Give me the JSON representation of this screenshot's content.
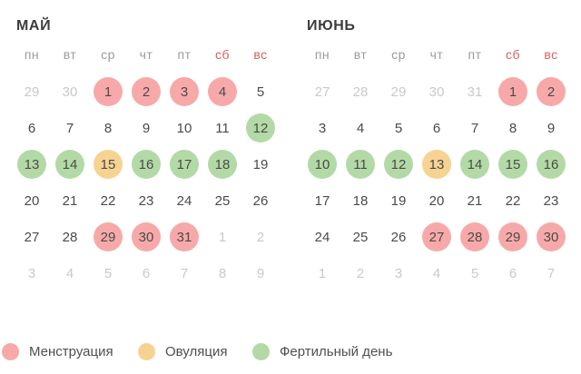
{
  "colors": {
    "menstruation": "#f7a9a9",
    "ovulation": "#f6d392",
    "fertile": "#b3daa6",
    "weekend_header": "#d95f5f",
    "weekday_header": "#9b9b9b",
    "day_text": "#4a4a4a",
    "muted_day": "#c9c9c9",
    "title": "#3c3c3c",
    "legend_text": "#4f4f4f"
  },
  "months": [
    {
      "title": "МАЙ",
      "weekdays": [
        {
          "label": "пн",
          "weekend": false
        },
        {
          "label": "вт",
          "weekend": false
        },
        {
          "label": "ср",
          "weekend": false
        },
        {
          "label": "чт",
          "weekend": false
        },
        {
          "label": "пт",
          "weekend": false
        },
        {
          "label": "сб",
          "weekend": true
        },
        {
          "label": "вс",
          "weekend": true
        }
      ],
      "weeks": [
        [
          {
            "d": "29",
            "t": "muted"
          },
          {
            "d": "30",
            "t": "muted"
          },
          {
            "d": "1",
            "t": "mens"
          },
          {
            "d": "2",
            "t": "mens"
          },
          {
            "d": "3",
            "t": "mens"
          },
          {
            "d": "4",
            "t": "mens"
          },
          {
            "d": "5",
            "t": "none"
          }
        ],
        [
          {
            "d": "6",
            "t": "none"
          },
          {
            "d": "7",
            "t": "none"
          },
          {
            "d": "8",
            "t": "none"
          },
          {
            "d": "9",
            "t": "none"
          },
          {
            "d": "10",
            "t": "none"
          },
          {
            "d": "11",
            "t": "none"
          },
          {
            "d": "12",
            "t": "fert"
          }
        ],
        [
          {
            "d": "13",
            "t": "fert"
          },
          {
            "d": "14",
            "t": "fert"
          },
          {
            "d": "15",
            "t": "ovul"
          },
          {
            "d": "16",
            "t": "fert"
          },
          {
            "d": "17",
            "t": "fert"
          },
          {
            "d": "18",
            "t": "fert"
          },
          {
            "d": "19",
            "t": "none"
          }
        ],
        [
          {
            "d": "20",
            "t": "none"
          },
          {
            "d": "21",
            "t": "none"
          },
          {
            "d": "22",
            "t": "none"
          },
          {
            "d": "23",
            "t": "none"
          },
          {
            "d": "24",
            "t": "none"
          },
          {
            "d": "25",
            "t": "none"
          },
          {
            "d": "26",
            "t": "none"
          }
        ],
        [
          {
            "d": "27",
            "t": "none"
          },
          {
            "d": "28",
            "t": "none"
          },
          {
            "d": "29",
            "t": "mens"
          },
          {
            "d": "30",
            "t": "mens"
          },
          {
            "d": "31",
            "t": "mens"
          },
          {
            "d": "1",
            "t": "muted"
          },
          {
            "d": "2",
            "t": "muted"
          }
        ],
        [
          {
            "d": "3",
            "t": "muted"
          },
          {
            "d": "4",
            "t": "muted"
          },
          {
            "d": "5",
            "t": "muted"
          },
          {
            "d": "6",
            "t": "muted"
          },
          {
            "d": "7",
            "t": "muted"
          },
          {
            "d": "8",
            "t": "muted"
          },
          {
            "d": "9",
            "t": "muted"
          }
        ]
      ]
    },
    {
      "title": "ИЮНЬ",
      "weekdays": [
        {
          "label": "пн",
          "weekend": false
        },
        {
          "label": "вт",
          "weekend": false
        },
        {
          "label": "ср",
          "weekend": false
        },
        {
          "label": "чт",
          "weekend": false
        },
        {
          "label": "пт",
          "weekend": false
        },
        {
          "label": "сб",
          "weekend": true
        },
        {
          "label": "вс",
          "weekend": true
        }
      ],
      "weeks": [
        [
          {
            "d": "27",
            "t": "muted"
          },
          {
            "d": "28",
            "t": "muted"
          },
          {
            "d": "29",
            "t": "muted"
          },
          {
            "d": "30",
            "t": "muted"
          },
          {
            "d": "31",
            "t": "muted"
          },
          {
            "d": "1",
            "t": "mens"
          },
          {
            "d": "2",
            "t": "mens"
          }
        ],
        [
          {
            "d": "3",
            "t": "none"
          },
          {
            "d": "4",
            "t": "none"
          },
          {
            "d": "5",
            "t": "none"
          },
          {
            "d": "6",
            "t": "none"
          },
          {
            "d": "7",
            "t": "none"
          },
          {
            "d": "8",
            "t": "none"
          },
          {
            "d": "9",
            "t": "none"
          }
        ],
        [
          {
            "d": "10",
            "t": "fert"
          },
          {
            "d": "11",
            "t": "fert"
          },
          {
            "d": "12",
            "t": "fert"
          },
          {
            "d": "13",
            "t": "ovul"
          },
          {
            "d": "14",
            "t": "fert"
          },
          {
            "d": "15",
            "t": "fert"
          },
          {
            "d": "16",
            "t": "fert"
          }
        ],
        [
          {
            "d": "17",
            "t": "none"
          },
          {
            "d": "18",
            "t": "none"
          },
          {
            "d": "19",
            "t": "none"
          },
          {
            "d": "20",
            "t": "none"
          },
          {
            "d": "21",
            "t": "none"
          },
          {
            "d": "22",
            "t": "none"
          },
          {
            "d": "23",
            "t": "none"
          }
        ],
        [
          {
            "d": "24",
            "t": "none"
          },
          {
            "d": "25",
            "t": "none"
          },
          {
            "d": "26",
            "t": "none"
          },
          {
            "d": "27",
            "t": "mens"
          },
          {
            "d": "28",
            "t": "mens"
          },
          {
            "d": "29",
            "t": "mens"
          },
          {
            "d": "30",
            "t": "mens"
          }
        ],
        [
          {
            "d": "1",
            "t": "muted"
          },
          {
            "d": "2",
            "t": "muted"
          },
          {
            "d": "3",
            "t": "muted"
          },
          {
            "d": "4",
            "t": "muted"
          },
          {
            "d": "5",
            "t": "muted"
          },
          {
            "d": "6",
            "t": "muted"
          },
          {
            "d": "7",
            "t": "muted"
          }
        ]
      ]
    }
  ],
  "legend": [
    {
      "label": "Менструация",
      "type": "mens"
    },
    {
      "label": "Овуляция",
      "type": "ovul"
    },
    {
      "label": "Фертильный день",
      "type": "fert"
    }
  ]
}
